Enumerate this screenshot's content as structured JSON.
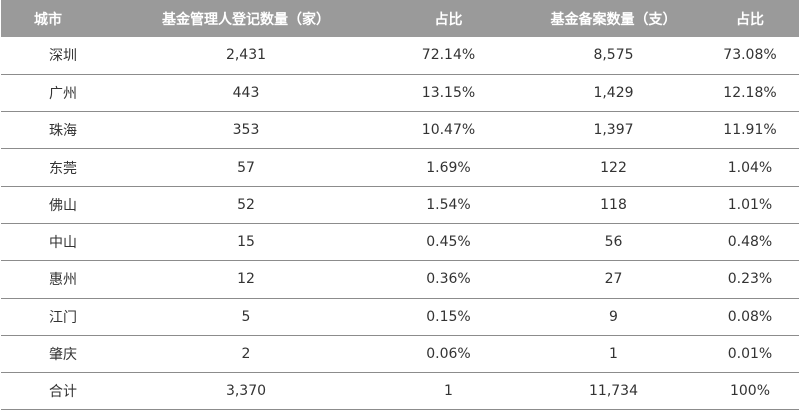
{
  "table": {
    "headers": [
      "城市",
      "基金管理人登记数量（家）",
      "占比",
      "基金备案数量（支）",
      "占比"
    ],
    "rows": [
      [
        "深圳",
        "2,431",
        "72.14%",
        "8,575",
        "73.08%"
      ],
      [
        "广州",
        "443",
        "13.15%",
        "1,429",
        "12.18%"
      ],
      [
        "珠海",
        "353",
        "10.47%",
        "1,397",
        "11.91%"
      ],
      [
        "东莞",
        "57",
        "1.69%",
        "122",
        "1.04%"
      ],
      [
        "佛山",
        "52",
        "1.54%",
        "118",
        "1.01%"
      ],
      [
        "中山",
        "15",
        "0.45%",
        "56",
        "0.48%"
      ],
      [
        "惠州",
        "12",
        "0.36%",
        "27",
        "0.23%"
      ],
      [
        "江门",
        "5",
        "0.15%",
        "9",
        "0.08%"
      ],
      [
        "肇庆",
        "2",
        "0.06%",
        "1",
        "0.01%"
      ],
      [
        "合计",
        "3,370",
        "1",
        "11,734",
        "100%"
      ]
    ],
    "colors": {
      "header_bg": "#9a9a9a",
      "header_text": "#ffffff",
      "cell_text": "#333333",
      "row_border": "#8c8c8c"
    }
  }
}
